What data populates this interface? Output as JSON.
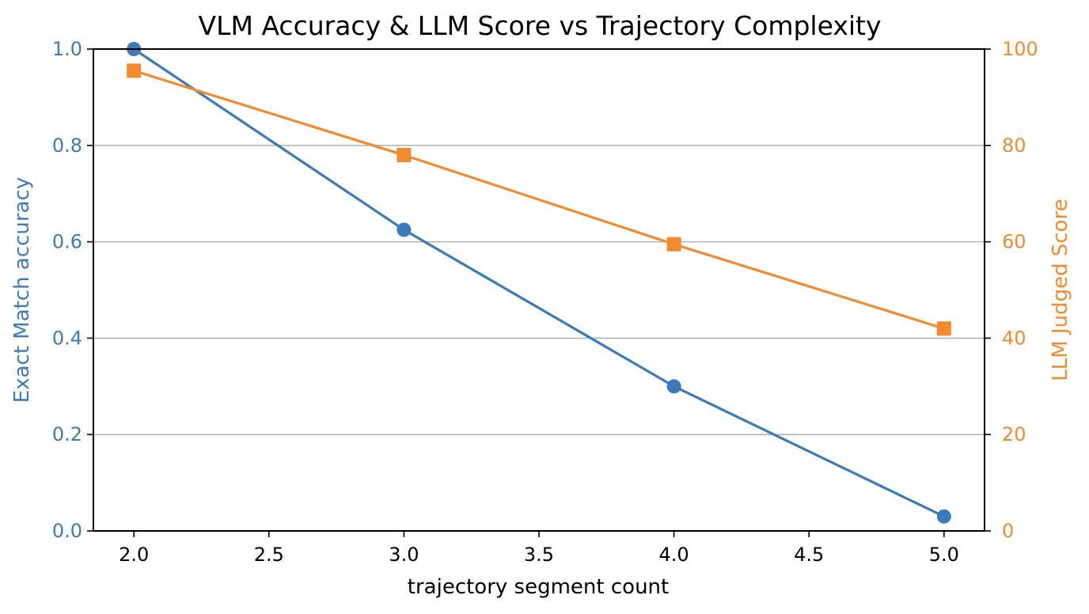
{
  "chart_data": {
    "type": "line",
    "title": "VLM Accuracy & LLM Score vs Trajectory Complexity",
    "xlabel": "trajectory segment count",
    "ylabel_left": "Exact Match accuracy",
    "ylabel_right": "LLM Judged Score",
    "xlim": [
      1.85,
      5.15
    ],
    "ylim_left": [
      0,
      1.0
    ],
    "ylim_right": [
      0,
      100
    ],
    "x_ticks": [
      "2.0",
      "2.5",
      "3.0",
      "3.5",
      "4.0",
      "4.5",
      "5.0"
    ],
    "y_ticks_left": [
      "0.0",
      "0.2",
      "0.4",
      "0.6",
      "0.8",
      "1.0"
    ],
    "y_ticks_right": [
      "0",
      "20",
      "40",
      "60",
      "80",
      "100"
    ],
    "grid": "horizontal",
    "series": [
      {
        "axis": "left",
        "marker": "circle",
        "color": "#3d7ab8",
        "x": [
          2,
          3,
          4,
          5
        ],
        "values": [
          1.0,
          0.625,
          0.3,
          0.03
        ]
      },
      {
        "axis": "right",
        "marker": "square",
        "color": "#f28a30",
        "x": [
          2,
          3,
          4,
          5
        ],
        "values": [
          95.5,
          78,
          59.5,
          42
        ]
      }
    ],
    "colors": {
      "left_axis": "#3d7ab8",
      "right_axis": "#f28a30",
      "grid": "#b0b0b0",
      "spine": "#000000"
    }
  }
}
